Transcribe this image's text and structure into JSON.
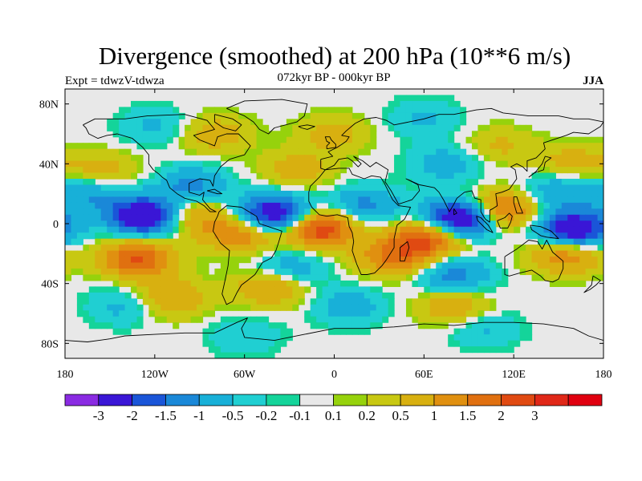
{
  "header": {
    "title": "Divergence (smoothed) at 200 hPa (10**6 m/s)",
    "subtitle": "072kyr BP - 000kyr BP",
    "left_label": "Expt = tdwzV-tdwza",
    "right_label": "JJA"
  },
  "axes": {
    "x_ticks": [
      {
        "value": -180,
        "label": "180"
      },
      {
        "value": -120,
        "label": "120W"
      },
      {
        "value": -60,
        "label": "60W"
      },
      {
        "value": 0,
        "label": "0"
      },
      {
        "value": 60,
        "label": "60E"
      },
      {
        "value": 120,
        "label": "120E"
      },
      {
        "value": 180,
        "label": "180"
      }
    ],
    "y_ticks": [
      {
        "value": 80,
        "label": "80N"
      },
      {
        "value": 40,
        "label": "40N"
      },
      {
        "value": 0,
        "label": "0"
      },
      {
        "value": -40,
        "label": "40S"
      },
      {
        "value": -80,
        "label": "80S"
      }
    ],
    "lon_range": [
      -180,
      180
    ],
    "lat_range": [
      -90,
      90
    ]
  },
  "colorbar": {
    "colors": [
      "#8a2be2",
      "#3a16d6",
      "#1a55d8",
      "#1a88d8",
      "#18b0d8",
      "#20cfd2",
      "#14d49a",
      "#e8e8e8",
      "#96d20c",
      "#c8c812",
      "#d8b010",
      "#e09010",
      "#e07010",
      "#e04a12",
      "#e02818",
      "#e00010"
    ],
    "labels": [
      "-3",
      "-2",
      "-1.5",
      "-1",
      "-0.5",
      "-0.2",
      "-0.1",
      "0.1",
      "0.2",
      "0.5",
      "1",
      "1.5",
      "2",
      "3"
    ]
  },
  "chart_data": {
    "type": "heatmap",
    "variable": "Divergence (smoothed) at 200 hPa",
    "units": "10**6 m/s",
    "season": "JJA",
    "levels": [
      -3,
      -2,
      -1.5,
      -1,
      -0.5,
      -0.2,
      -0.1,
      0.1,
      0.2,
      0.5,
      1,
      1.5,
      2,
      3
    ],
    "lon_range": [
      -180,
      180
    ],
    "lat_range": [
      -90,
      90
    ],
    "features": [
      {
        "lon": -126,
        "lat": 5,
        "value": -3.2
      },
      {
        "lon": -40,
        "lat": 6,
        "value": -3.0
      },
      {
        "lon": 84,
        "lat": 3,
        "value": -3.4
      },
      {
        "lon": 160,
        "lat": -4,
        "value": -3.0
      },
      {
        "lon": -10,
        "lat": -3,
        "value": 2.6
      },
      {
        "lon": 64,
        "lat": -9,
        "value": 2.3
      },
      {
        "lon": 112,
        "lat": 9,
        "value": 2.0
      },
      {
        "lon": -132,
        "lat": -23,
        "value": 2.1
      },
      {
        "lon": -62,
        "lat": -6,
        "value": 1.6
      },
      {
        "lon": -98,
        "lat": 5,
        "value": 1.3
      },
      {
        "lon": 40,
        "lat": -22,
        "value": 1.6
      },
      {
        "lon": 155,
        "lat": -20,
        "value": 1.6
      },
      {
        "lon": -42,
        "lat": -42,
        "value": 1.2
      },
      {
        "lon": -110,
        "lat": -50,
        "value": 1.1
      },
      {
        "lon": 80,
        "lat": -55,
        "value": 1.0
      },
      {
        "lon": -155,
        "lat": 35,
        "value": 0.8
      },
      {
        "lon": -25,
        "lat": 36,
        "value": 0.8
      },
      {
        "lon": -80,
        "lat": 60,
        "value": 0.8
      },
      {
        "lon": 0,
        "lat": 60,
        "value": 0.7
      },
      {
        "lon": 110,
        "lat": 52,
        "value": 0.6
      },
      {
        "lon": 160,
        "lat": 40,
        "value": 0.8
      },
      {
        "lon": -95,
        "lat": 25,
        "value": -1.2
      },
      {
        "lon": -165,
        "lat": 20,
        "value": -1.0
      },
      {
        "lon": 20,
        "lat": 12,
        "value": -1.2
      },
      {
        "lon": -30,
        "lat": -30,
        "value": -1.0
      },
      {
        "lon": 80,
        "lat": -35,
        "value": -1.3
      },
      {
        "lon": 150,
        "lat": 22,
        "value": -1.0
      },
      {
        "lon": 75,
        "lat": 40,
        "value": -0.8
      },
      {
        "lon": -140,
        "lat": -55,
        "value": -0.7
      },
      {
        "lon": 10,
        "lat": -55,
        "value": -0.8
      },
      {
        "lon": -120,
        "lat": 65,
        "value": -0.6
      },
      {
        "lon": 60,
        "lat": 70,
        "value": -0.6
      },
      {
        "lon": 100,
        "lat": -70,
        "value": -0.6
      },
      {
        "lon": -60,
        "lat": -75,
        "value": -0.5
      }
    ]
  }
}
